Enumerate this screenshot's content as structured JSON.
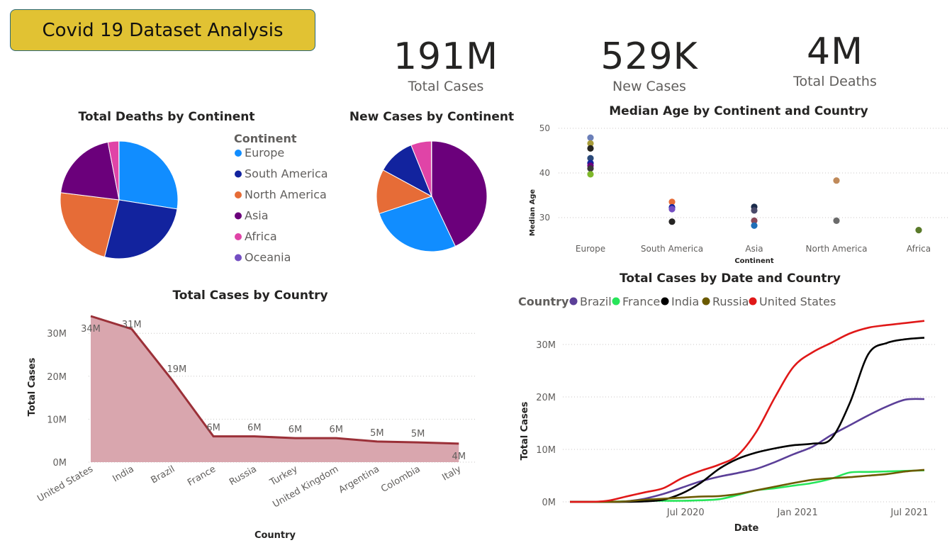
{
  "header": {
    "title": "Covid 19 Dataset Analysis"
  },
  "kpis": [
    {
      "value": "191M",
      "label": "Total Cases"
    },
    {
      "value": "529K",
      "label": "New Cases"
    },
    {
      "value": "4M",
      "label": "Total Deaths"
    }
  ],
  "colors": {
    "Europe": "#118dff",
    "South America": "#12239e",
    "North America": "#e66c37",
    "Asia": "#6b007b",
    "Africa": "#e044a7",
    "Oceania": "#744ec2"
  },
  "legend": {
    "title": "Continent",
    "items": [
      "Europe",
      "South America",
      "North America",
      "Asia",
      "Africa",
      "Oceania"
    ]
  },
  "chart_data": [
    {
      "id": "deaths_pie",
      "type": "pie",
      "title": "Total Deaths by Continent",
      "slices": [
        {
          "name": "Europe",
          "value": 27.5
        },
        {
          "name": "South America",
          "value": 26.5
        },
        {
          "name": "North America",
          "value": 23
        },
        {
          "name": "Asia",
          "value": 20
        },
        {
          "name": "Africa",
          "value": 3
        },
        {
          "name": "Oceania",
          "value": 0.05
        }
      ]
    },
    {
      "id": "newcases_pie",
      "type": "pie",
      "title": "New Cases by Continent",
      "slices": [
        {
          "name": "Asia",
          "value": 43
        },
        {
          "name": "Europe",
          "value": 27
        },
        {
          "name": "North America",
          "value": 13
        },
        {
          "name": "South America",
          "value": 11
        },
        {
          "name": "Africa",
          "value": 6
        },
        {
          "name": "Oceania",
          "value": 0.1
        }
      ]
    },
    {
      "id": "median_age",
      "type": "scatter",
      "title": "Median Age by Continent and Country",
      "xlabel": "Continent",
      "ylabel": "Median Age",
      "categories": [
        "Europe",
        "South America",
        "Asia",
        "North America",
        "Africa"
      ],
      "yticks": [
        "30",
        "40",
        "50"
      ],
      "ylim": [
        26,
        52
      ],
      "points": [
        {
          "x": "Europe",
          "y": 47.9,
          "color": "#6b7fb8"
        },
        {
          "x": "Europe",
          "y": 46.6,
          "color": "#a89c3a"
        },
        {
          "x": "Europe",
          "y": 45.5,
          "color": "#252423"
        },
        {
          "x": "Europe",
          "y": 43.3,
          "color": "#2b4a7a"
        },
        {
          "x": "Europe",
          "y": 42.2,
          "color": "#12239e"
        },
        {
          "x": "Europe",
          "y": 41.6,
          "color": "#6b007b"
        },
        {
          "x": "Europe",
          "y": 41.0,
          "color": "#3a3a3a"
        },
        {
          "x": "Europe",
          "y": 39.7,
          "color": "#7fb82a"
        },
        {
          "x": "South America",
          "y": 33.5,
          "color": "#e66c37"
        },
        {
          "x": "South America",
          "y": 32.3,
          "color": "#12239e"
        },
        {
          "x": "South America",
          "y": 31.9,
          "color": "#744ec2"
        },
        {
          "x": "South America",
          "y": 29.1,
          "color": "#252423"
        },
        {
          "x": "Asia",
          "y": 32.4,
          "color": "#1a2b4a"
        },
        {
          "x": "Asia",
          "y": 31.6,
          "color": "#4a4a6a"
        },
        {
          "x": "Asia",
          "y": 29.3,
          "color": "#8a4a5a"
        },
        {
          "x": "Asia",
          "y": 28.2,
          "color": "#1f6fb8"
        },
        {
          "x": "North America",
          "y": 38.3,
          "color": "#c08a5a"
        },
        {
          "x": "North America",
          "y": 29.3,
          "color": "#6b6b6b"
        },
        {
          "x": "Africa",
          "y": 27.2,
          "color": "#5a7a2a"
        }
      ]
    },
    {
      "id": "cases_by_country",
      "type": "area",
      "title": "Total Cases by Country",
      "xlabel": "Country",
      "ylabel": "Total Cases",
      "categories": [
        "United States",
        "India",
        "Brazil",
        "France",
        "Russia",
        "Turkey",
        "United Kingdom",
        "Argentina",
        "Colombia",
        "Italy"
      ],
      "values": [
        34,
        31,
        19,
        6,
        6,
        5.6,
        5.6,
        4.8,
        4.6,
        4.3
      ],
      "data_labels": [
        "34M",
        "31M",
        "19M",
        "6M",
        "6M",
        "6M",
        "6M",
        "5M",
        "5M",
        "4M"
      ],
      "yticks": [
        "0M",
        "10M",
        "20M",
        "30M"
      ],
      "ylim": [
        0,
        35
      ]
    },
    {
      "id": "cases_by_date",
      "type": "line",
      "title": "Total Cases by Date and Country",
      "xlabel": "Date",
      "ylabel": "Total Cases",
      "legend_title": "Country",
      "xticks": [
        "Jul 2020",
        "Jan 2021",
        "Jul 2021"
      ],
      "yticks": [
        "0M",
        "10M",
        "20M",
        "30M"
      ],
      "ylim": [
        0,
        35
      ],
      "x_dates": [
        "2020-01",
        "2020-02",
        "2020-03",
        "2020-04",
        "2020-05",
        "2020-06",
        "2020-07",
        "2020-08",
        "2020-09",
        "2020-10",
        "2020-11",
        "2020-12",
        "2021-01",
        "2021-02",
        "2021-03",
        "2021-04",
        "2021-05",
        "2021-06",
        "2021-07",
        "2021-08"
      ],
      "series": [
        {
          "name": "Brazil",
          "color": "#5b3f98",
          "values": [
            0,
            0,
            0,
            0.1,
            0.6,
            1.5,
            2.7,
            3.9,
            4.8,
            5.5,
            6.3,
            7.6,
            9.1,
            10.5,
            12.7,
            14.6,
            16.5,
            18.2,
            19.5,
            19.6
          ]
        },
        {
          "name": "France",
          "color": "#27e55a",
          "values": [
            0,
            0,
            0,
            0.1,
            0.2,
            0.2,
            0.2,
            0.3,
            0.5,
            1.3,
            2.2,
            2.6,
            3.1,
            3.6,
            4.4,
            5.6,
            5.7,
            5.8,
            5.9,
            6.0
          ]
        },
        {
          "name": "India",
          "color": "#000000",
          "values": [
            0,
            0,
            0,
            0,
            0.1,
            0.4,
            1.6,
            3.6,
            6.3,
            8.2,
            9.4,
            10.2,
            10.8,
            11.1,
            12.0,
            18.8,
            28.2,
            30.3,
            31.0,
            31.3
          ]
        },
        {
          "name": "Russia",
          "color": "#6b5a00",
          "values": [
            0,
            0,
            0,
            0.1,
            0.4,
            0.6,
            0.8,
            1.0,
            1.1,
            1.5,
            2.2,
            2.9,
            3.6,
            4.2,
            4.5,
            4.7,
            5.0,
            5.3,
            5.8,
            6.1
          ]
        },
        {
          "name": "United States",
          "color": "#e01818",
          "values": [
            0,
            0,
            0.2,
            1.0,
            1.8,
            2.6,
            4.5,
            5.9,
            7.1,
            8.9,
            13.4,
            20.0,
            25.8,
            28.5,
            30.3,
            32.1,
            33.2,
            33.7,
            34.1,
            34.5
          ]
        }
      ]
    }
  ]
}
